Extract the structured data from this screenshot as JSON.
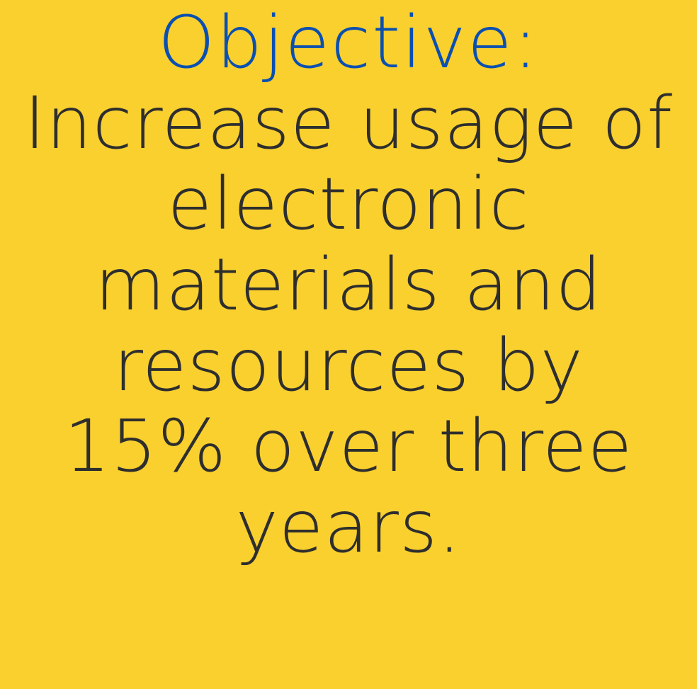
{
  "colors": {
    "background": "#F9D02E",
    "heading": "#0B4FB0",
    "body_text": "#2E2E2E"
  },
  "slide": {
    "heading": "Objective:",
    "lines": [
      "Increase usage of",
      "electronic",
      "materials and",
      "resources by",
      "15% over three",
      "years."
    ]
  }
}
